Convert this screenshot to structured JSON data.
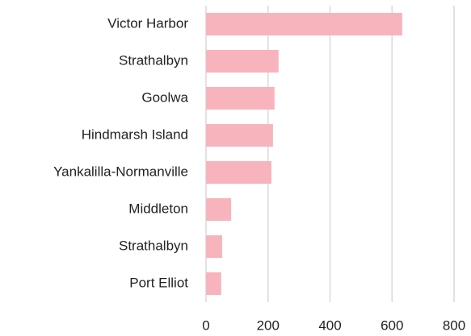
{
  "chart_data": {
    "type": "hbar",
    "categories": [
      "Victor Harbor",
      "Strathalbyn",
      "Goolwa",
      "Hindmarsh Island",
      "Yankalilla-Normanville",
      "Middleton",
      "Strathalbyn",
      "Port Elliot"
    ],
    "values": [
      633,
      234,
      221,
      216,
      211,
      81,
      52,
      49
    ],
    "color": "#f8b4bc",
    "xlim": [
      0,
      800
    ],
    "xticks": [
      0,
      200,
      400,
      600,
      800
    ],
    "grid": true
  }
}
